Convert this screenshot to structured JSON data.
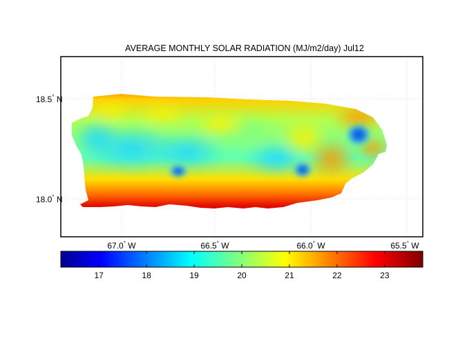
{
  "title": "AVERAGE MONTHLY SOLAR RADIATION (MJ/m2/day) Jul12",
  "map": {
    "region": "Puerto Rico",
    "grid": true,
    "lon_ticks": [
      {
        "value": -67.0,
        "label": "67.0",
        "unit": "W"
      },
      {
        "value": -66.5,
        "label": "66.5",
        "unit": "W"
      },
      {
        "value": -66.0,
        "label": "66.0",
        "unit": "W"
      },
      {
        "value": -65.5,
        "label": "65.5",
        "unit": "W"
      }
    ],
    "lat_ticks": [
      {
        "value": 18.5,
        "label": "18.5",
        "unit": "N"
      },
      {
        "value": 18.0,
        "label": "18.0",
        "unit": "N"
      }
    ],
    "lon_range": [
      -67.3,
      -65.4
    ],
    "lat_range": [
      17.8,
      18.7
    ]
  },
  "colorbar": {
    "colormap": "jet",
    "range": [
      16.2,
      23.8
    ],
    "ticks": [
      "17",
      "18",
      "19",
      "20",
      "21",
      "22",
      "23"
    ],
    "tick_values": [
      17,
      18,
      19,
      20,
      21,
      22,
      23
    ]
  }
}
